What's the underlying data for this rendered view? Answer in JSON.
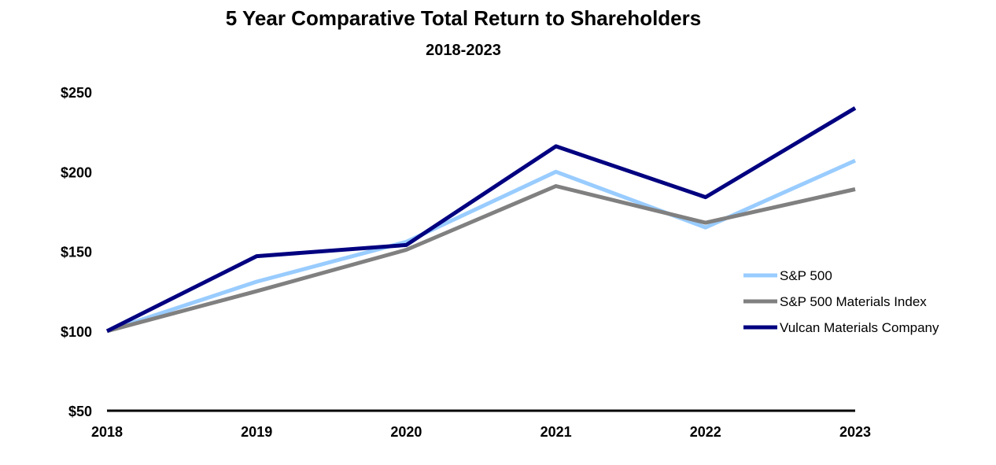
{
  "chart_data": {
    "type": "line",
    "title": "5 Year Comparative Total Return to Shareholders",
    "subtitle": "2018-2023",
    "xlabel": "",
    "ylabel": "",
    "categories": [
      "2018",
      "2019",
      "2020",
      "2021",
      "2022",
      "2023"
    ],
    "ylim": [
      50,
      250
    ],
    "yticks": [
      50,
      100,
      150,
      200,
      250
    ],
    "ytick_labels": [
      "$50",
      "$100",
      "$150",
      "$200",
      "$250"
    ],
    "grid": false,
    "legend_position": "right",
    "series": [
      {
        "name": "S&P 500",
        "color": "#99ccff",
        "values": [
          100,
          131,
          156,
          200,
          165,
          207
        ]
      },
      {
        "name": "S&P 500 Materials Index",
        "color": "#808080",
        "values": [
          100,
          125,
          151,
          191,
          168,
          189
        ]
      },
      {
        "name": "Vulcan Materials Company",
        "color": "#000080",
        "values": [
          100,
          147,
          154,
          216,
          184,
          240
        ]
      }
    ]
  }
}
